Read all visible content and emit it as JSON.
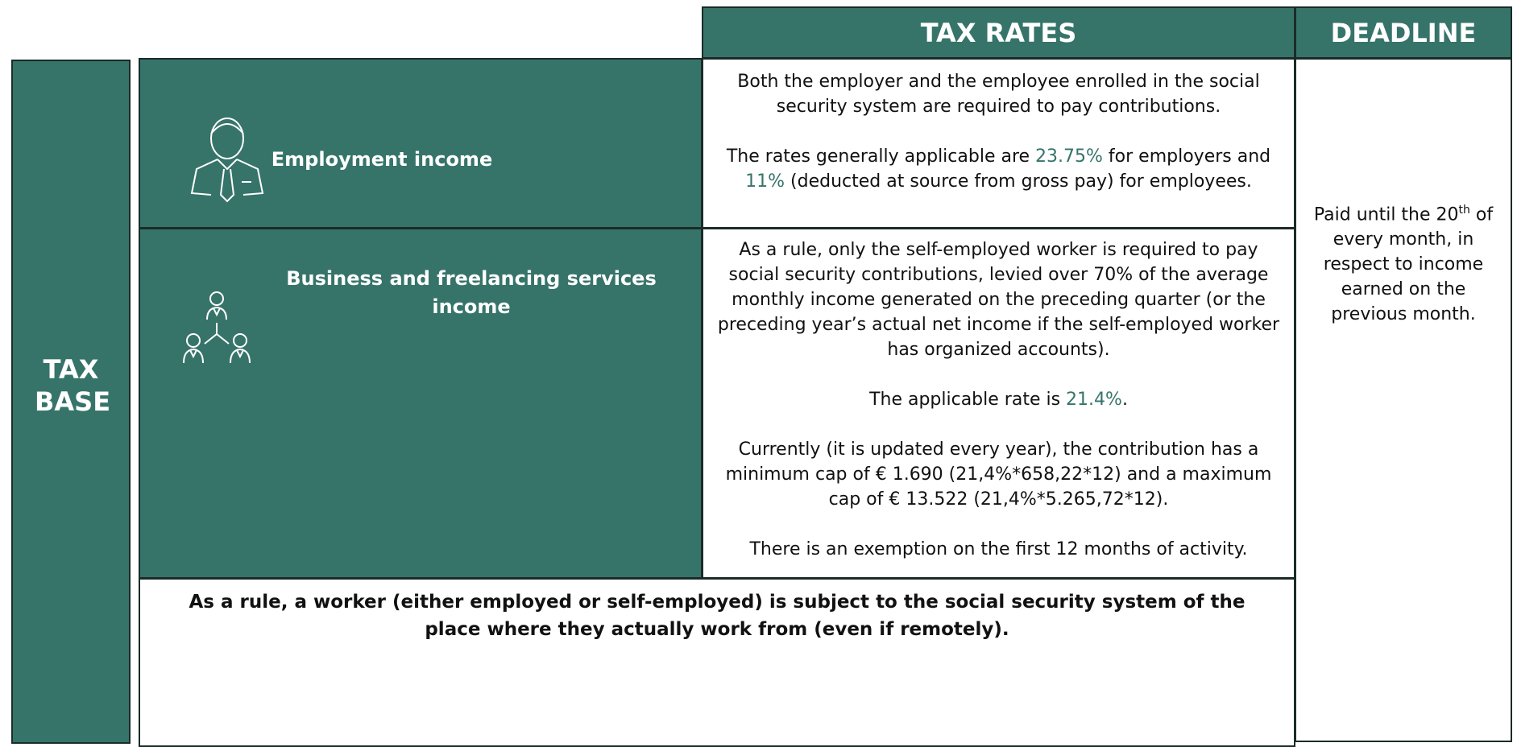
{
  "header": {
    "tax_rates": "TAX RATES",
    "deadline": "DEADLINE"
  },
  "tax_base": "TAX BASE",
  "rows": [
    {
      "label": "Employment income",
      "paragraphs": [
        [
          {
            "text": "Both the employer and the employee enrolled in the social security system are required to pay contributions."
          }
        ],
        [
          {
            "text": "The rates generally applicable are "
          },
          {
            "text": "23.75%",
            "highlight": true
          },
          {
            "text": " for employers and "
          },
          {
            "text": "11%",
            "highlight": true
          },
          {
            "text": " (deducted at source from gross pay) for employees."
          }
        ]
      ]
    },
    {
      "label": "Business and freelancing services income",
      "paragraphs": [
        [
          {
            "text": "As a rule, only the self-employed worker is required to pay social security contributions, levied over 70% of the average monthly income generated on the preceding quarter (or the preceding year’s actual net income if the self-employed worker has organized accounts)."
          }
        ],
        [
          {
            "text": "The applicable rate is "
          },
          {
            "text": "21.4%",
            "highlight": true
          },
          {
            "text": "."
          }
        ],
        [
          {
            "text": "Currently (it is updated every year), the contribution has a minimum cap of € 1.690 (21,4%*658,22*12) and a maximum cap of € 13.522 (21,4%*5.265,72*12)."
          }
        ],
        [
          {
            "text": "There is an exemption on the first 12 months of activity."
          }
        ]
      ]
    }
  ],
  "deadline": [
    {
      "text": "Paid until the 20"
    },
    {
      "text": "th",
      "superscript": true
    },
    {
      "text": " of every month, in respect to income earned on the previous month."
    }
  ],
  "note": "As a rule, a worker (either employed or self-employed) is subject to the social security system of the place where they actually work from (even if remotely)."
}
